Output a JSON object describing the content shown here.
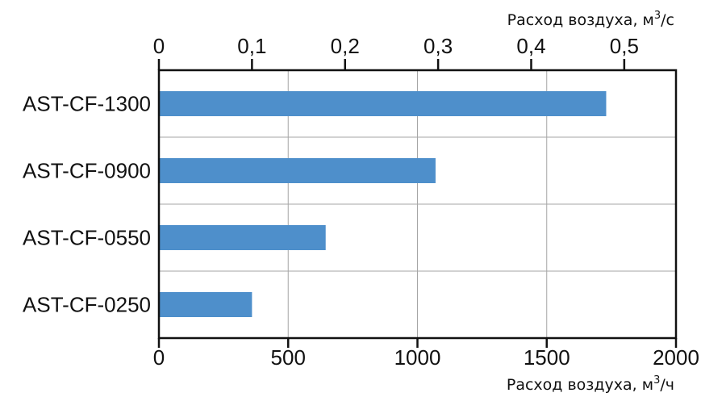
{
  "chart_data": {
    "type": "bar",
    "orientation": "horizontal",
    "categories": [
      "AST-CF-1300",
      "AST-CF-0900",
      "AST-CF-0550",
      "AST-CF-0250"
    ],
    "series": [
      {
        "values": [
          1730,
          1070,
          645,
          360
        ]
      }
    ],
    "xlim": [
      0,
      2000
    ],
    "xticks": [
      "0",
      "500",
      "1000",
      "1500",
      "2000"
    ],
    "x2lim": [
      0,
      0.5556
    ],
    "x2ticks": [
      "0",
      "0,1",
      "0,2",
      "0,3",
      "0,4",
      "0,5"
    ],
    "x2tick_values": [
      0,
      0.1,
      0.2,
      0.3,
      0.4,
      0.5
    ],
    "xlabel": {
      "text": "Расход воздуха, м",
      "sup": "3",
      "suffix": "/ч"
    },
    "x2label": {
      "text": "Расход воздуха, м",
      "sup": "3",
      "suffix": "/с"
    },
    "grid": true,
    "bar_color": "#4e8fcb"
  }
}
